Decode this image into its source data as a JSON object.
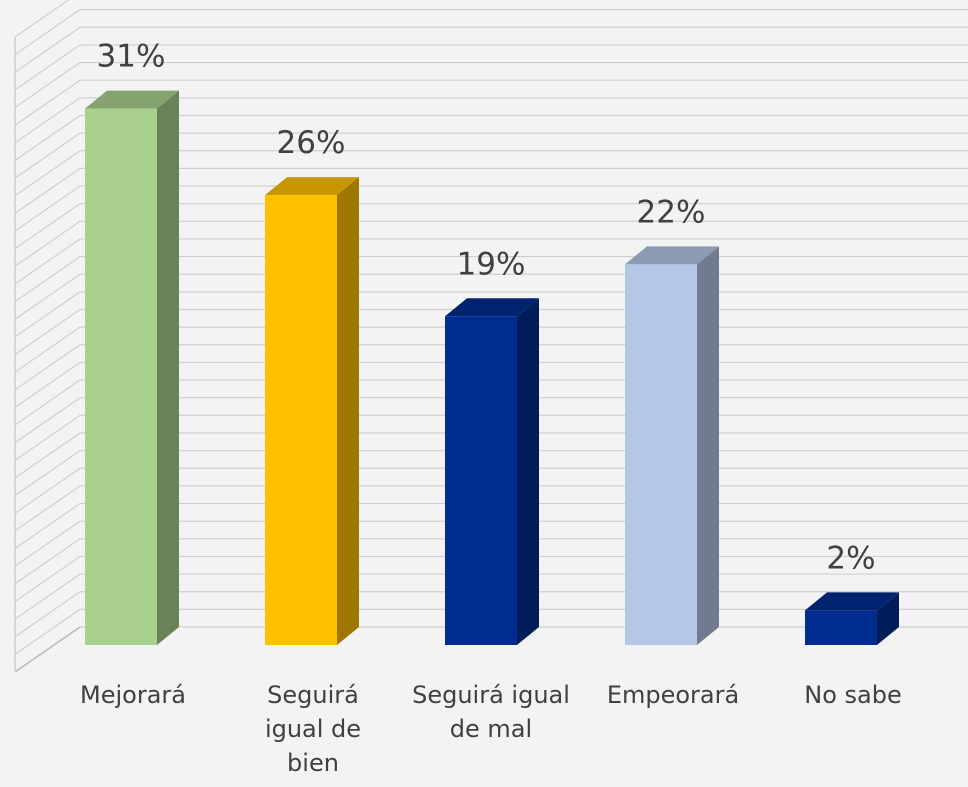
{
  "chart_data": {
    "type": "bar3d",
    "categories": [
      "Mejorará",
      "Seguirá igual de bien",
      "Seguirá igual de mal",
      "Empeorará",
      "No sabe"
    ],
    "values": [
      31,
      26,
      19,
      22,
      2
    ],
    "value_labels": [
      "31%",
      "26%",
      "19%",
      "22%",
      "2%"
    ],
    "colors": [
      "#a9d18e",
      "#ffc000",
      "#002d8f",
      "#b4c7e7",
      "#002d8f"
    ],
    "ylim": [
      0,
      36.7
    ],
    "grid": true
  }
}
